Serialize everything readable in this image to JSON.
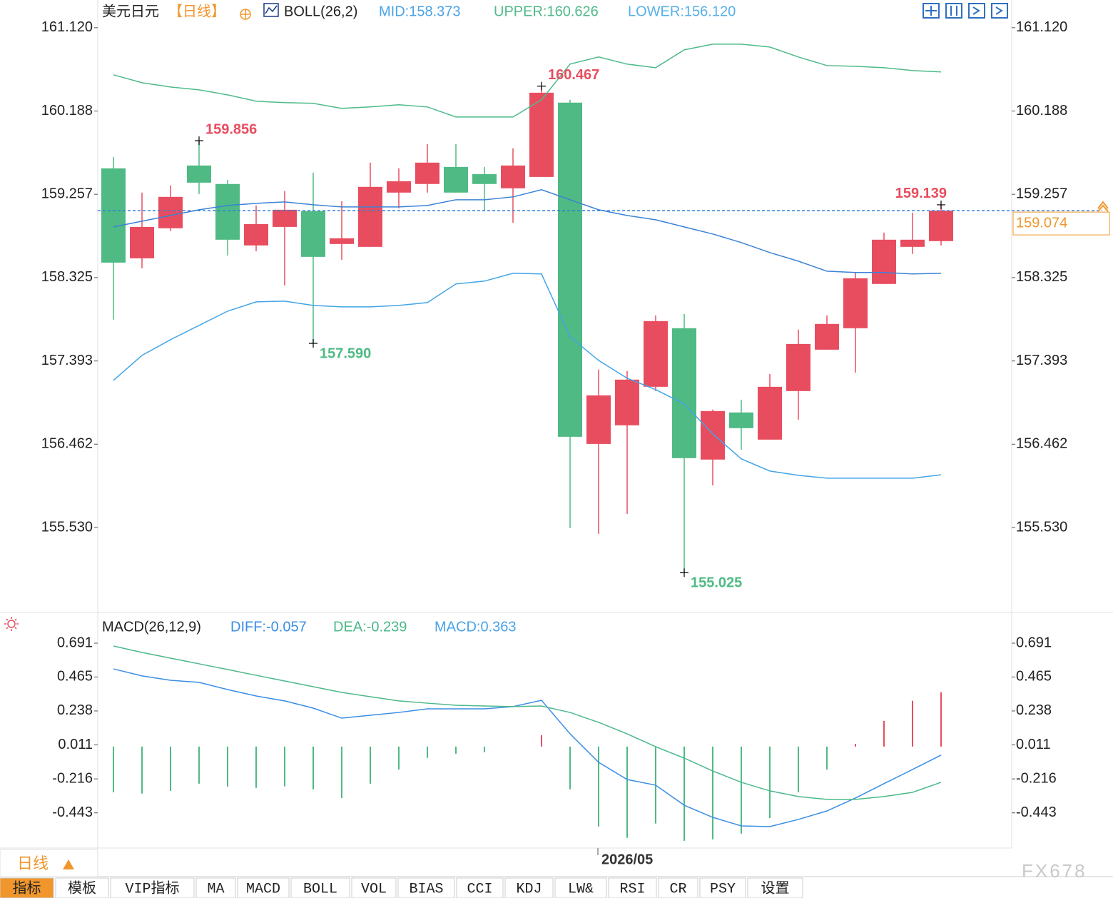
{
  "title": "美元日元",
  "period": "【日线】",
  "period_tab": "日线",
  "watermark": "FX678",
  "toolbar": [
    "指标",
    "模板",
    "VIP指标",
    "MA",
    "MACD",
    "BOLL",
    "VOL",
    "BIAS",
    "CCI",
    "KDJ",
    "LW&",
    "RSI",
    "CR",
    "PSY",
    "设置"
  ],
  "chart_data": [
    {
      "type": "candlestick",
      "legend": [
        {
          "text": "BOLL(26,2)",
          "color": "#222222"
        },
        {
          "text": "MID:158.373",
          "color": "#4aa3e8"
        },
        {
          "text": "UPPER:160.626",
          "color": "#4fba8a"
        },
        {
          "text": "LOWER:156.120",
          "color": "#56b0e8"
        }
      ],
      "annotations": [
        "159.856",
        "157.590",
        "160.467",
        "155.025",
        "159.139"
      ],
      "categories": [
        null,
        null,
        null,
        null,
        null,
        null,
        null,
        null,
        null,
        null,
        null,
        null,
        null,
        null,
        null,
        null,
        null,
        "2026/05",
        null,
        null,
        null,
        null,
        null,
        null,
        null,
        null,
        null,
        null,
        null,
        null
      ],
      "up_color": "#e84d5f",
      "down_color": "#4fba84",
      "price_color": "#f0962c",
      "grid": false,
      "candles": {
        "open": [
          159.547,
          158.541,
          158.877,
          159.579,
          159.372,
          158.685,
          158.892,
          159.068,
          158.701,
          158.669,
          159.276,
          159.372,
          159.563,
          159.483,
          159.324,
          159.451,
          160.282,
          156.465,
          156.673,
          157.104,
          157.759,
          156.29,
          156.817,
          156.513,
          157.056,
          157.519,
          157.759,
          158.254,
          158.669,
          158.733
        ],
        "high": [
          159.675,
          159.276,
          159.356,
          159.856,
          159.419,
          159.132,
          159.292,
          159.499,
          159.18,
          159.611,
          159.547,
          159.819,
          159.819,
          159.563,
          159.771,
          160.467,
          160.314,
          157.296,
          157.28,
          157.902,
          157.918,
          156.849,
          156.96,
          157.248,
          157.743,
          157.902,
          158.382,
          158.829,
          159.052,
          159.139
        ],
        "low": [
          157.855,
          158.429,
          158.845,
          159.26,
          158.573,
          158.621,
          158.238,
          157.59,
          158.525,
          158.669,
          159.1,
          159.276,
          159.276,
          159.068,
          158.94,
          159.451,
          155.523,
          155.459,
          155.683,
          157.056,
          155.025,
          156.002,
          156.401,
          156.513,
          156.737,
          157.519,
          157.264,
          158.254,
          158.589,
          158.685
        ],
        "close": [
          158.493,
          158.892,
          159.228,
          159.387,
          158.749,
          158.924,
          159.084,
          158.557,
          158.765,
          159.34,
          159.403,
          159.611,
          159.276,
          159.372,
          159.579,
          160.393,
          156.545,
          157.008,
          157.184,
          157.839,
          156.306,
          156.833,
          156.641,
          157.104,
          157.583,
          157.807,
          158.318,
          158.749,
          158.749,
          159.074
        ]
      },
      "series": [
        {
          "color": "#4fba8a",
          "values": [
            160.593,
            160.505,
            160.457,
            160.425,
            160.369,
            160.298,
            160.282,
            160.274,
            160.218,
            160.234,
            160.258,
            160.234,
            160.122,
            160.122,
            160.122,
            160.314,
            160.713,
            160.793,
            160.713,
            160.673,
            160.872,
            160.936,
            160.936,
            160.904,
            160.793,
            160.697,
            160.689,
            160.673,
            160.641,
            160.626
          ]
        },
        {
          "color": "#3b82d6",
          "values": [
            158.892,
            158.956,
            159.02,
            159.084,
            159.132,
            159.156,
            159.172,
            159.14,
            159.116,
            159.116,
            159.116,
            159.132,
            159.196,
            159.196,
            159.228,
            159.308,
            159.196,
            159.084,
            159.02,
            158.972,
            158.892,
            158.813,
            158.717,
            158.605,
            158.509,
            158.397,
            158.382,
            158.382,
            158.366,
            158.373
          ]
        },
        {
          "color": "#42a5e6",
          "values": [
            157.176,
            157.455,
            157.631,
            157.791,
            157.95,
            158.054,
            158.062,
            158.014,
            157.998,
            157.998,
            158.014,
            158.046,
            158.254,
            158.286,
            158.374,
            158.366,
            157.663,
            157.399,
            157.2,
            157.072,
            156.912,
            156.577,
            156.298,
            156.162,
            156.114,
            156.082,
            156.082,
            156.082,
            156.082,
            156.12
          ]
        }
      ],
      "ylim": [
        154.58,
        161.43
      ],
      "yticks": [
        {
          "value": 161.12,
          "label": "161.120"
        },
        160.188,
        159.257,
        158.325,
        157.393,
        156.462,
        {
          "value": 155.53,
          "label": "155.530"
        }
      ]
    },
    {
      "type": "macd",
      "title": "MACD(26,12,9)",
      "legend": [
        {
          "text": "DIFF:-0.057",
          "color": "#3a8ee6"
        },
        {
          "text": "DEA:-0.239",
          "color": "#4cb98a"
        },
        {
          "text": "MACD:0.363",
          "color": "#4aa3e8"
        }
      ],
      "up_color": "#e84d5f",
      "down_color": "#4fba84",
      "series": [
        {
          "color": "#3a8ee6",
          "values": [
            0.519,
            0.472,
            0.443,
            0.429,
            0.381,
            0.338,
            0.305,
            0.257,
            0.19,
            0.209,
            0.228,
            0.252,
            0.252,
            0.252,
            0.267,
            0.309,
            0.085,
            -0.105,
            -0.22,
            -0.258,
            -0.392,
            -0.473,
            -0.53,
            -0.535,
            -0.487,
            -0.43,
            -0.344,
            -0.248,
            -0.153,
            -0.057
          ]
        },
        {
          "color": "#4cb98a",
          "values": [
            0.672,
            0.629,
            0.591,
            0.553,
            0.515,
            0.476,
            0.438,
            0.4,
            0.362,
            0.333,
            0.305,
            0.29,
            0.276,
            0.271,
            0.267,
            0.271,
            0.228,
            0.162,
            0.085,
            -0.001,
            -0.077,
            -0.163,
            -0.239,
            -0.296,
            -0.334,
            -0.353,
            -0.353,
            -0.334,
            -0.306,
            -0.239
          ]
        }
      ],
      "histogram": [
        -0.306,
        -0.314,
        -0.296,
        -0.248,
        -0.268,
        -0.276,
        -0.266,
        -0.286,
        -0.344,
        -0.248,
        -0.154,
        -0.076,
        -0.048,
        -0.038,
        0,
        0.076,
        -0.286,
        -0.534,
        -0.61,
        -0.514,
        -0.63,
        -0.62,
        -0.582,
        -0.478,
        -0.306,
        -0.154,
        0.018,
        0.172,
        0.306,
        0.363
      ],
      "ylim": [
        -0.678,
        0.877
      ],
      "yticks": [
        0.691,
        0.465,
        0.238,
        0.011,
        -0.216,
        -0.443
      ]
    }
  ]
}
